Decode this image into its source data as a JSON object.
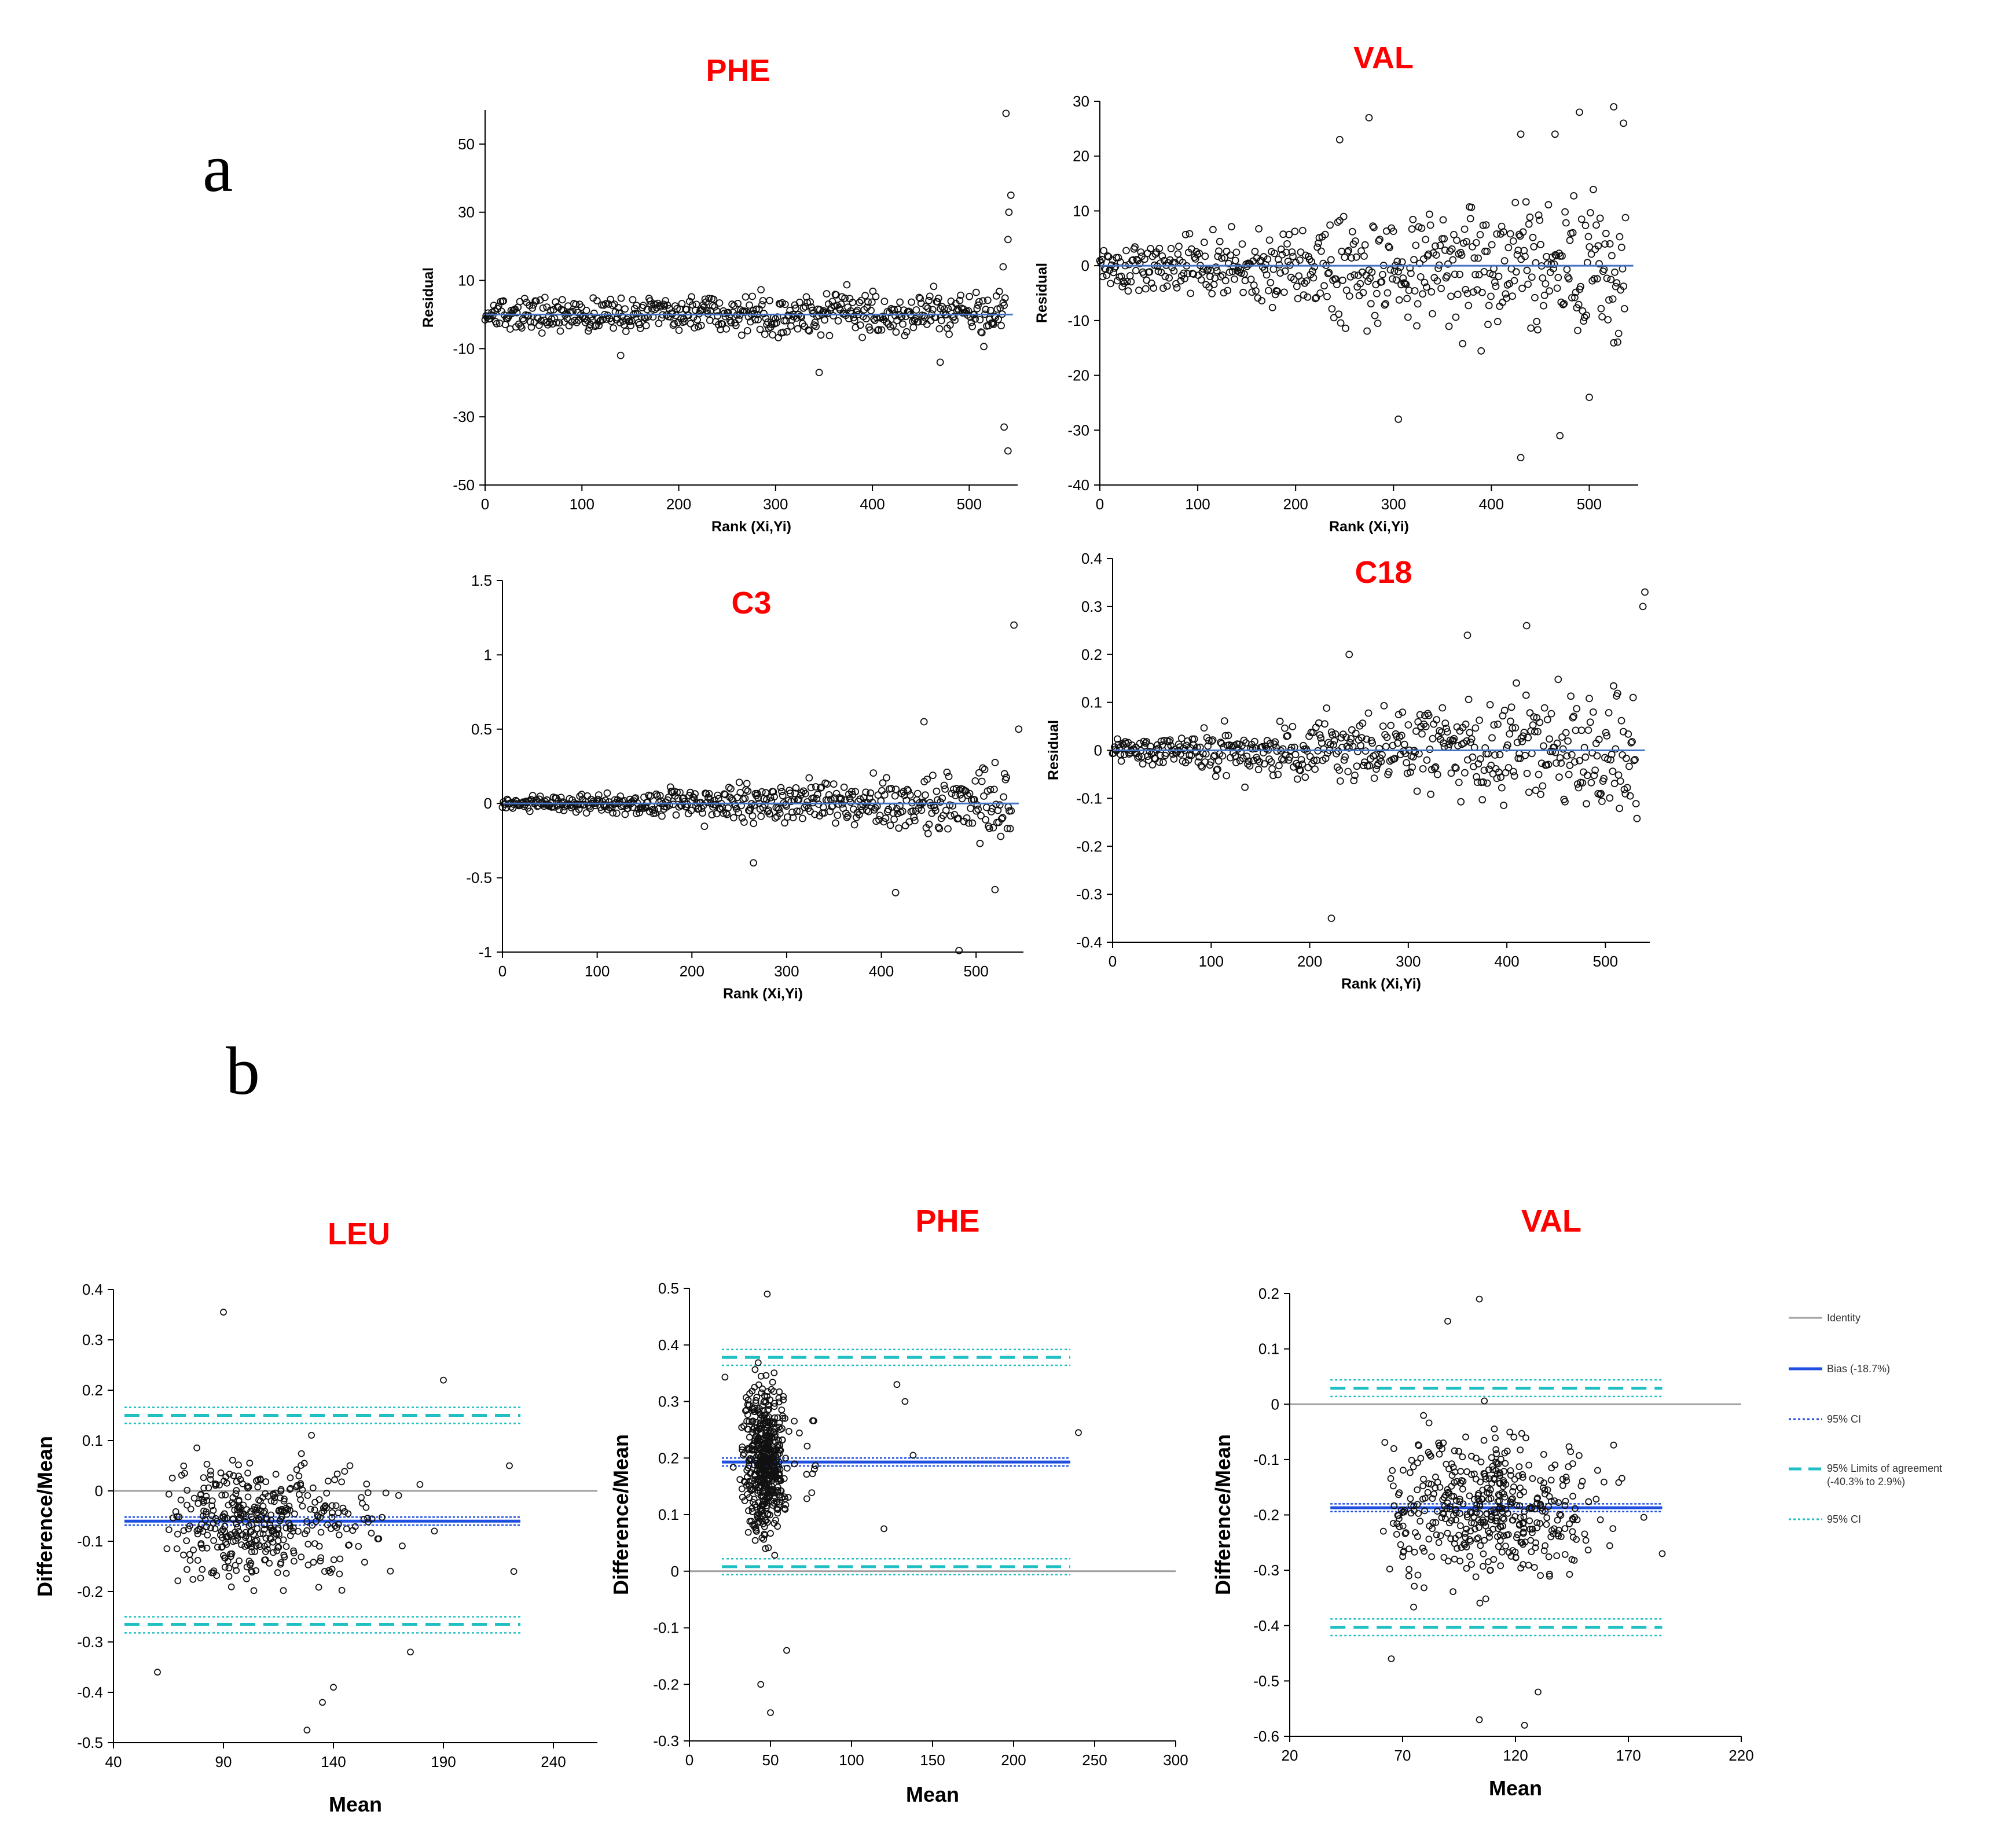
{
  "panel_labels": {
    "a": "a",
    "b": "b"
  },
  "legend": {
    "identity": "Identity",
    "bias": "Bias (-18.7%)",
    "ci1": "95% CI",
    "loa_line1": "95% Limits of agreement",
    "loa_line2": "(-40.3% to 2.9%)",
    "ci2": "95% CI"
  },
  "colors": {
    "title": "#ff0000",
    "fit": "#4472c4",
    "bias": "#1f4fe0",
    "loa": "#1fbfc4",
    "identity": "#a0a0a0"
  },
  "chart_data": [
    {
      "id": "a_phe",
      "type": "scatter",
      "title": "PHE",
      "xlabel": "Rank (Xi,Yi)",
      "ylabel": "Residual",
      "xlim": [
        0,
        550
      ],
      "ylim": [
        -50,
        60
      ],
      "xticks": [
        0,
        100,
        200,
        300,
        400,
        500
      ],
      "xtick_labels": [
        "0",
        "100",
        "200",
        "300",
        "400",
        "500"
      ],
      "yticks": [
        -50,
        -30,
        -10,
        10,
        30,
        50
      ],
      "ytick_labels": [
        "-50",
        "-30",
        "-10",
        "10",
        "30",
        "50"
      ],
      "fit_line": 0,
      "n_points": 540,
      "outliers": [
        [
          538,
          59
        ],
        [
          543,
          35
        ],
        [
          541,
          30
        ],
        [
          540,
          22
        ],
        [
          535,
          14
        ],
        [
          536,
          -33
        ],
        [
          540,
          -40
        ],
        [
          345,
          -17
        ],
        [
          140,
          -12
        ],
        [
          470,
          -14
        ]
      ]
    },
    {
      "id": "a_val",
      "type": "scatter",
      "title": "VAL",
      "xlabel": "Rank (Xi,Yi)",
      "ylabel": "Residual",
      "xlim": [
        0,
        550
      ],
      "ylim": [
        -40,
        30
      ],
      "xticks": [
        0,
        100,
        200,
        300,
        400,
        500
      ],
      "xtick_labels": [
        "0",
        "100",
        "200",
        "300",
        "400",
        "500"
      ],
      "yticks": [
        -40,
        -30,
        -20,
        -10,
        0,
        10,
        20,
        30
      ],
      "ytick_labels": [
        "-40",
        "-30",
        "-20",
        "-10",
        "0",
        "10",
        "20",
        "30"
      ],
      "fit_line": 0,
      "n_points": 540,
      "outliers": [
        [
          430,
          -35
        ],
        [
          470,
          -31
        ],
        [
          305,
          -28
        ],
        [
          500,
          -24
        ],
        [
          525,
          29
        ],
        [
          275,
          27
        ],
        [
          490,
          28
        ],
        [
          430,
          24
        ],
        [
          245,
          23
        ],
        [
          465,
          24
        ],
        [
          535,
          26
        ]
      ]
    },
    {
      "id": "a_c3",
      "type": "scatter",
      "title": "C3",
      "xlabel": "Rank (Xi,Yi)",
      "ylabel": "",
      "xlim": [
        0,
        550
      ],
      "ylim": [
        -1,
        1.5
      ],
      "xticks": [
        0,
        100,
        200,
        300,
        400,
        500
      ],
      "xtick_labels": [
        "0",
        "100",
        "200",
        "300",
        "400",
        "500"
      ],
      "yticks": [
        -1,
        -0.5,
        0,
        0.5,
        1,
        1.5
      ],
      "ytick_labels": [
        "-1",
        "-0.5",
        "0",
        "0.5",
        "1",
        "1.5"
      ],
      "fit_line": 0,
      "n_points": 540,
      "outliers": [
        [
          540,
          1.2
        ],
        [
          482,
          -0.99
        ],
        [
          415,
          -0.6
        ],
        [
          520,
          -0.58
        ],
        [
          265,
          -0.4
        ],
        [
          545,
          0.5
        ],
        [
          445,
          0.55
        ]
      ]
    },
    {
      "id": "a_c18",
      "type": "scatter",
      "title": "C18",
      "xlabel": "Rank (Xi,Yi)",
      "ylabel": "Residual",
      "xlim": [
        0,
        545
      ],
      "ylim": [
        -0.4,
        0.4
      ],
      "xticks": [
        0,
        100,
        200,
        300,
        400,
        500
      ],
      "xtick_labels": [
        "0",
        "100",
        "200",
        "300",
        "400",
        "500"
      ],
      "yticks": [
        -0.4,
        -0.3,
        -0.2,
        -0.1,
        0,
        0.1,
        0.2,
        0.3,
        0.4
      ],
      "ytick_labels": [
        "-0.4",
        "-0.3",
        "-0.2",
        "-0.1",
        "0",
        "0.1",
        "0.2",
        "0.3",
        "0.4"
      ],
      "fit_line": 0,
      "n_points": 540,
      "outliers": [
        [
          222,
          -0.35
        ],
        [
          540,
          0.33
        ],
        [
          538,
          0.3
        ],
        [
          420,
          0.26
        ],
        [
          360,
          0.24
        ],
        [
          240,
          0.2
        ]
      ]
    },
    {
      "id": "b_leu",
      "type": "scatter",
      "title": "LEU",
      "xlabel": "Mean",
      "ylabel": "Difference/Mean",
      "xlim": [
        40,
        260
      ],
      "ylim": [
        -0.5,
        0.4
      ],
      "xticks": [
        40,
        90,
        140,
        190,
        240
      ],
      "xtick_labels": [
        "40",
        "90",
        "140",
        "190",
        "240"
      ],
      "yticks": [
        -0.5,
        -0.4,
        -0.3,
        -0.2,
        -0.1,
        0,
        0.1,
        0.2,
        0.3,
        0.4
      ],
      "ytick_labels": [
        "-0.5",
        "-0.4",
        "-0.3",
        "-0.2",
        "-0.1",
        "0",
        "0.1",
        "0.2",
        "0.3",
        "0.4"
      ],
      "identity": 0,
      "bias": -0.06,
      "bias_ci": [
        -0.068,
        -0.052
      ],
      "loa": [
        -0.265,
        0.15
      ],
      "loa_ci": [
        [
          -0.282,
          -0.25
        ],
        [
          0.134,
          0.166
        ]
      ],
      "x_range_lines": [
        45,
        225
      ],
      "n_points": 420,
      "outliers": [
        [
          90,
          0.355
        ],
        [
          128,
          -0.475
        ],
        [
          135,
          -0.42
        ],
        [
          140,
          -0.39
        ],
        [
          60,
          -0.36
        ],
        [
          175,
          -0.32
        ],
        [
          190,
          0.22
        ],
        [
          222,
          -0.16
        ],
        [
          220,
          0.05
        ]
      ]
    },
    {
      "id": "b_phe",
      "type": "scatter",
      "title": "PHE",
      "xlabel": "Mean",
      "ylabel": "Difference/Mean",
      "xlim": [
        0,
        300
      ],
      "ylim": [
        -0.3,
        0.5
      ],
      "xticks": [
        0,
        50,
        100,
        150,
        200,
        250,
        300
      ],
      "xtick_labels": [
        "0",
        "50",
        "100",
        "150",
        "200",
        "250",
        "300"
      ],
      "yticks": [
        -0.3,
        -0.2,
        -0.1,
        0,
        0.1,
        0.2,
        0.3,
        0.4,
        0.5
      ],
      "ytick_labels": [
        "-0.3",
        "-0.2",
        "-0.1",
        "0",
        "0.1",
        "0.2",
        "0.3",
        "0.4",
        "0.5"
      ],
      "identity": 0,
      "bias": 0.193,
      "bias_ci": [
        0.186,
        0.2
      ],
      "loa": [
        0.008,
        0.378
      ],
      "loa_ci": [
        [
          -0.006,
          0.022
        ],
        [
          0.364,
          0.392
        ]
      ],
      "x_range_lines": [
        20,
        235
      ],
      "n_points": 520,
      "outliers": [
        [
          48,
          0.49
        ],
        [
          50,
          -0.25
        ],
        [
          44,
          -0.2
        ],
        [
          60,
          -0.14
        ],
        [
          240,
          0.245
        ],
        [
          133,
          0.3
        ],
        [
          120,
          0.075
        ],
        [
          138,
          0.205
        ],
        [
          128,
          0.33
        ]
      ]
    },
    {
      "id": "b_val",
      "type": "scatter",
      "title": "VAL",
      "xlabel": "Mean",
      "ylabel": "Difference/Mean",
      "xlim": [
        20,
        220
      ],
      "ylim": [
        -0.6,
        0.2
      ],
      "xticks": [
        20,
        70,
        120,
        170,
        220
      ],
      "xtick_labels": [
        "20",
        "70",
        "120",
        "170",
        "220"
      ],
      "yticks": [
        -0.6,
        -0.5,
        -0.4,
        -0.3,
        -0.2,
        -0.1,
        0,
        0.1,
        0.2
      ],
      "ytick_labels": [
        "-0.6",
        "-0.5",
        "-0.4",
        "-0.3",
        "-0.2",
        "-0.1",
        "0",
        "0.1",
        "0.2"
      ],
      "identity": 0,
      "bias": -0.187,
      "bias_ci": [
        -0.194,
        -0.18
      ],
      "loa": [
        -0.403,
        0.029
      ],
      "loa_ci": [
        [
          -0.418,
          -0.388
        ],
        [
          0.014,
          0.044
        ]
      ],
      "x_range_lines": [
        38,
        185
      ],
      "n_points": 460,
      "outliers": [
        [
          104,
          0.19
        ],
        [
          104,
          -0.57
        ],
        [
          124,
          -0.58
        ],
        [
          130,
          -0.52
        ],
        [
          90,
          0.15
        ],
        [
          65,
          -0.46
        ],
        [
          185,
          -0.27
        ]
      ]
    }
  ]
}
